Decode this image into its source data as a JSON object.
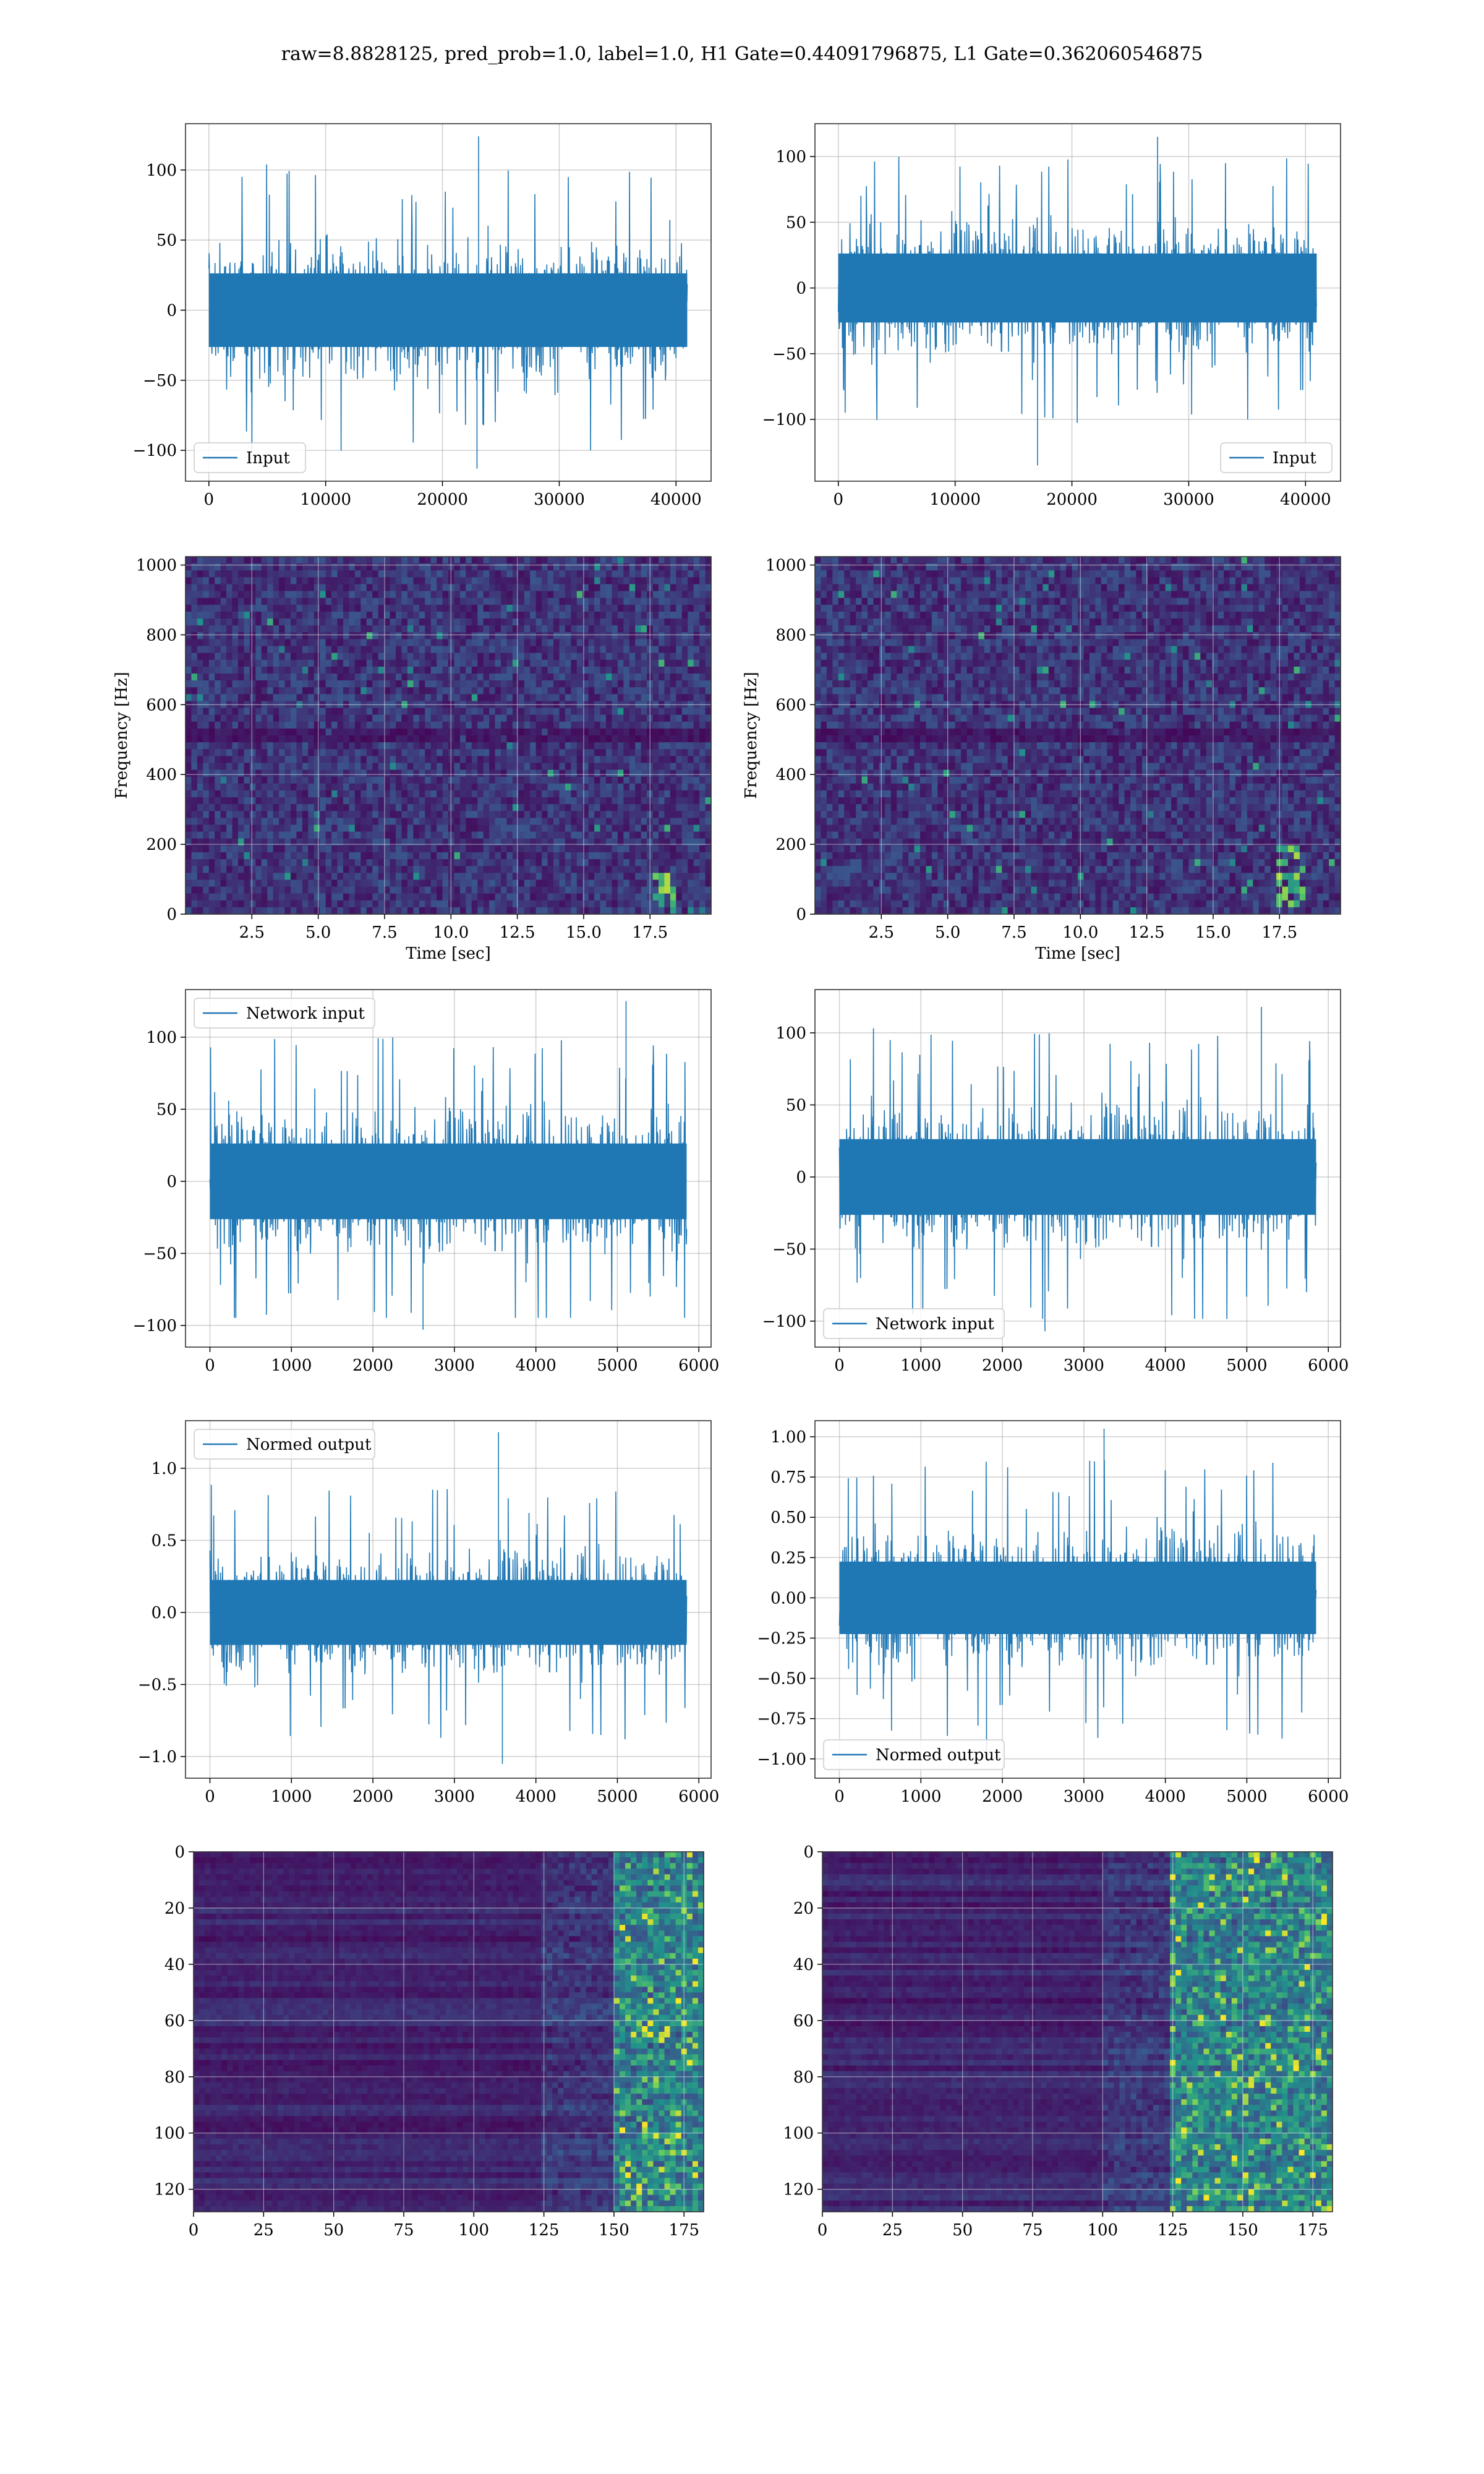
{
  "title": "raw=8.8828125, pred_prob=1.0, label=1.0, H1 Gate=0.44091796875, L1 Gate=0.362060546875",
  "colors": {
    "line": "#1f77b4",
    "grid": "#b0b0b0",
    "viridis_low": "#440154",
    "viridis_mid": "#21918c",
    "viridis_high": "#fde725"
  },
  "chart_data": [
    {
      "id": "input-h1",
      "type": "line",
      "series": [
        {
          "name": "Input",
          "amplitude_typical": 35,
          "peak_max": 124,
          "peak_min": -113
        }
      ],
      "x": {
        "range": [
          -2000,
          43000
        ],
        "ticks": [
          0,
          10000,
          20000,
          30000,
          40000
        ],
        "data_range": [
          0,
          40960
        ]
      },
      "y": {
        "range": [
          -122,
          133
        ],
        "ticks": [
          -100,
          -50,
          0,
          50,
          100
        ]
      },
      "legend": "lower-left",
      "grid": true,
      "xlabel": "",
      "ylabel": ""
    },
    {
      "id": "input-l1",
      "type": "line",
      "series": [
        {
          "name": "Input",
          "amplitude_typical": 35,
          "peak_max": 115,
          "peak_min": -135
        }
      ],
      "x": {
        "range": [
          -2000,
          43000
        ],
        "ticks": [
          0,
          10000,
          20000,
          30000,
          40000
        ],
        "data_range": [
          0,
          40960
        ]
      },
      "y": {
        "range": [
          -147,
          125
        ],
        "ticks": [
          -100,
          -50,
          0,
          50,
          100
        ]
      },
      "legend": "lower-right",
      "grid": true,
      "xlabel": "",
      "ylabel": ""
    },
    {
      "id": "spectrogram-h1",
      "type": "heatmap",
      "x": {
        "range": [
          0,
          19.8
        ],
        "ticks": [
          "2.5",
          "5.0",
          "7.5",
          "10.0",
          "12.5",
          "15.0",
          "17.5"
        ]
      },
      "y": {
        "range": [
          0,
          1024
        ],
        "ticks": [
          0,
          200,
          400,
          600,
          800,
          1000
        ]
      },
      "xlabel": "Time [sec]",
      "ylabel": "Frequency [Hz]",
      "grid": true,
      "colormap": "viridis",
      "feature": {
        "x": [
          17.5,
          18.4
        ],
        "y": [
          20,
          120
        ]
      }
    },
    {
      "id": "spectrogram-l1",
      "type": "heatmap",
      "x": {
        "range": [
          0,
          19.8
        ],
        "ticks": [
          "2.5",
          "5.0",
          "7.5",
          "10.0",
          "12.5",
          "15.0",
          "17.5"
        ]
      },
      "y": {
        "range": [
          0,
          1024
        ],
        "ticks": [
          0,
          200,
          400,
          600,
          800,
          1000
        ]
      },
      "xlabel": "Time [sec]",
      "ylabel": "Frequency [Hz]",
      "grid": true,
      "colormap": "viridis",
      "feature": {
        "x": [
          17.3,
          18.4
        ],
        "y": [
          20,
          200
        ]
      }
    },
    {
      "id": "network-input-h1",
      "type": "line",
      "series": [
        {
          "name": "Network input",
          "amplitude_typical": 35,
          "peak_max": 125,
          "peak_min": -103
        }
      ],
      "x": {
        "range": [
          -300,
          6150
        ],
        "ticks": [
          0,
          1000,
          2000,
          3000,
          4000,
          5000,
          6000
        ],
        "data_range": [
          0,
          5850
        ]
      },
      "y": {
        "range": [
          -115,
          133
        ],
        "ticks": [
          -100,
          -50,
          0,
          50,
          100
        ]
      },
      "legend": "upper-left",
      "grid": true,
      "xlabel": "",
      "ylabel": ""
    },
    {
      "id": "network-input-l1",
      "type": "line",
      "series": [
        {
          "name": "Network input",
          "amplitude_typical": 35,
          "peak_max": 118,
          "peak_min": -107
        }
      ],
      "x": {
        "range": [
          -300,
          6150
        ],
        "ticks": [
          0,
          1000,
          2000,
          3000,
          4000,
          5000,
          6000
        ],
        "data_range": [
          0,
          5850
        ]
      },
      "y": {
        "range": [
          -118,
          130
        ],
        "ticks": [
          -100,
          -50,
          0,
          50,
          100
        ]
      },
      "legend": "lower-left",
      "grid": true,
      "xlabel": "",
      "ylabel": ""
    },
    {
      "id": "normed-output-h1",
      "type": "line",
      "series": [
        {
          "name": "Normed output",
          "amplitude_typical": 0.3,
          "peak_max": 1.25,
          "peak_min": -1.05
        }
      ],
      "x": {
        "range": [
          -300,
          6150
        ],
        "ticks": [
          0,
          1000,
          2000,
          3000,
          4000,
          5000,
          6000
        ],
        "data_range": [
          0,
          5850
        ]
      },
      "y": {
        "range": [
          -1.15,
          1.33
        ],
        "ticks": [
          "−1.0",
          "−0.5",
          "0.0",
          "0.5",
          "1.0"
        ],
        "tick_values": [
          -1.0,
          -0.5,
          0.0,
          0.5,
          1.0
        ]
      },
      "legend": "upper-left",
      "grid": true,
      "xlabel": "",
      "ylabel": ""
    },
    {
      "id": "normed-output-l1",
      "type": "line",
      "series": [
        {
          "name": "Normed output",
          "amplitude_typical": 0.3,
          "peak_max": 1.05,
          "peak_min": -0.95
        }
      ],
      "x": {
        "range": [
          -300,
          6150
        ],
        "ticks": [
          0,
          1000,
          2000,
          3000,
          4000,
          5000,
          6000
        ],
        "data_range": [
          0,
          5850
        ]
      },
      "y": {
        "range": [
          -1.12,
          1.1
        ],
        "ticks": [
          "−1.00",
          "−0.75",
          "−0.50",
          "−0.25",
          "0.00",
          "0.25",
          "0.50",
          "0.75",
          "1.00"
        ],
        "tick_values": [
          -1.0,
          -0.75,
          -0.5,
          -0.25,
          0.0,
          0.25,
          0.5,
          0.75,
          1.0
        ]
      },
      "legend": "lower-left",
      "grid": true,
      "xlabel": "",
      "ylabel": ""
    },
    {
      "id": "feature-map-h1",
      "type": "heatmap",
      "x": {
        "range": [
          0,
          182
        ],
        "ticks": [
          0,
          25,
          50,
          75,
          100,
          125,
          150,
          175
        ]
      },
      "y": {
        "range": [
          128,
          0
        ],
        "ticks": [
          0,
          20,
          40,
          60,
          80,
          100,
          120
        ],
        "inverted": true
      },
      "grid": true,
      "colormap": "viridis",
      "xlabel": "",
      "ylabel": "",
      "active_region": {
        "x": [
          150,
          182
        ]
      }
    },
    {
      "id": "feature-map-l1",
      "type": "heatmap",
      "x": {
        "range": [
          0,
          182
        ],
        "ticks": [
          0,
          25,
          50,
          75,
          100,
          125,
          150,
          175
        ]
      },
      "y": {
        "range": [
          128,
          0
        ],
        "ticks": [
          0,
          20,
          40,
          60,
          80,
          100,
          120
        ],
        "inverted": true
      },
      "grid": true,
      "colormap": "viridis",
      "xlabel": "",
      "ylabel": "",
      "active_region": {
        "x": [
          125,
          182
        ]
      }
    }
  ]
}
